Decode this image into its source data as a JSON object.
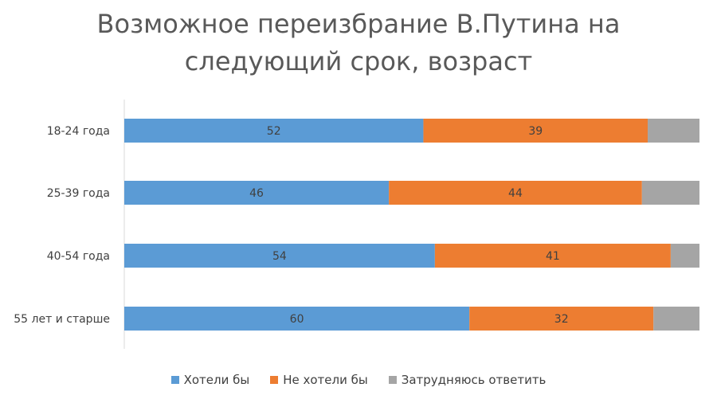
{
  "chart_data": {
    "type": "bar",
    "orientation": "horizontal",
    "stacked": true,
    "title_lines": [
      "Возможное переизбрание В.Путина на",
      "следующий срок, возраст"
    ],
    "categories": [
      "18-24 года",
      "25-39 года",
      "40-54 года",
      "55 лет и старше"
    ],
    "series": [
      {
        "name": "Хотели бы",
        "color": "#5B9BD5",
        "values": [
          52,
          46,
          54,
          60
        ],
        "labels": [
          "52",
          "46",
          "54",
          "60"
        ]
      },
      {
        "name": "Не хотели бы",
        "color": "#ED7D31",
        "values": [
          39,
          44,
          41,
          32
        ],
        "labels": [
          "39",
          "44",
          "41",
          "32"
        ]
      },
      {
        "name": "Затрудняюсь ответить",
        "color": "#A5A5A5",
        "values": [
          9,
          10,
          5,
          8
        ],
        "labels": [
          "",
          "",
          "",
          ""
        ]
      }
    ],
    "xlim": [
      0,
      100
    ],
    "grid": false,
    "legend_position": "bottom"
  }
}
